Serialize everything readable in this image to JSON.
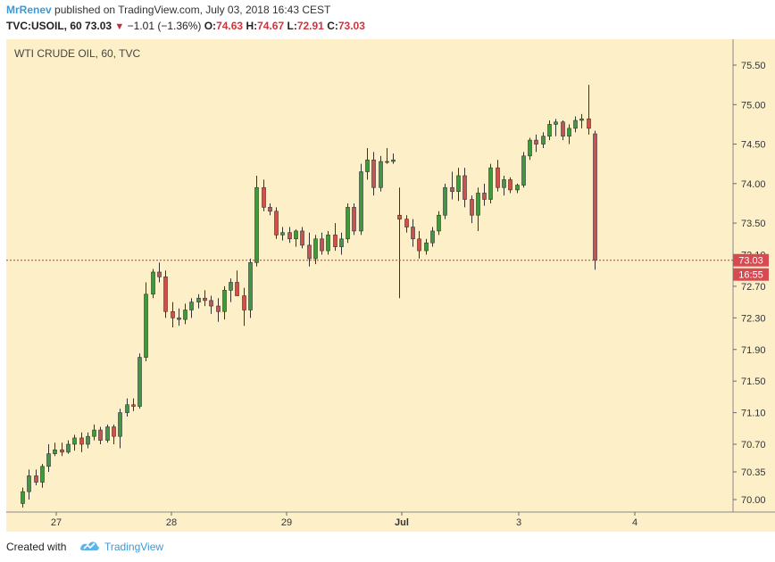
{
  "header": {
    "author": "MrRenev",
    "published_text": "published on TradingView.com, July 03, 2018 16:43 CEST",
    "symbol": "TVC:USOIL, 60",
    "last": "73.03",
    "change": "−1.01 (−1.36%)",
    "open_label": "O:",
    "open": "74.63",
    "high_label": "H:",
    "high": "74.67",
    "low_label": "L:",
    "low": "72.91",
    "close_label": "C:",
    "close": "73.03"
  },
  "footer": {
    "created_with": "Created with",
    "brand": "TradingView"
  },
  "colors": {
    "background": "#fdf0c8",
    "up": "#3f9a3f",
    "down": "#d0504d",
    "wick": "#333333",
    "price_line": "#d0343c",
    "label_bg": "#d84a52"
  },
  "chart_data": {
    "type": "candlestick",
    "title": "WTI CRUDE OIL, 60, TVC",
    "y_ticks": [
      "70.00",
      "70.35",
      "70.70",
      "71.10",
      "71.50",
      "71.90",
      "72.30",
      "72.70",
      "73.10",
      "73.50",
      "74.00",
      "74.50",
      "75.00",
      "75.50"
    ],
    "x_ticks": [
      "27",
      "28",
      "29",
      "Jul",
      "3",
      "4"
    ],
    "current_price_label": "73.03",
    "current_time_label": "16:55",
    "candles": [
      [
        69.95,
        70.15,
        69.9,
        70.1
      ],
      [
        70.1,
        70.38,
        70.0,
        70.3
      ],
      [
        70.3,
        70.38,
        70.18,
        70.22
      ],
      [
        70.22,
        70.45,
        70.15,
        70.42
      ],
      [
        70.42,
        70.7,
        70.35,
        70.58
      ],
      [
        70.58,
        70.72,
        70.55,
        70.63
      ],
      [
        70.63,
        70.72,
        70.55,
        70.6
      ],
      [
        70.6,
        70.75,
        70.58,
        70.7
      ],
      [
        70.7,
        70.82,
        70.62,
        70.78
      ],
      [
        70.78,
        70.85,
        70.6,
        70.7
      ],
      [
        70.7,
        70.85,
        70.65,
        70.8
      ],
      [
        70.8,
        70.95,
        70.75,
        70.88
      ],
      [
        70.88,
        70.92,
        70.7,
        70.75
      ],
      [
        70.75,
        70.95,
        70.72,
        70.92
      ],
      [
        70.92,
        70.95,
        70.7,
        70.8
      ],
      [
        70.8,
        71.15,
        70.65,
        71.1
      ],
      [
        71.1,
        71.28,
        71.05,
        71.2
      ],
      [
        71.2,
        71.28,
        71.12,
        71.18
      ],
      [
        71.18,
        71.85,
        71.15,
        71.8
      ],
      [
        71.8,
        72.75,
        71.75,
        72.6
      ],
      [
        72.6,
        72.92,
        72.55,
        72.88
      ],
      [
        72.88,
        73.0,
        72.75,
        72.82
      ],
      [
        72.82,
        72.9,
        72.3,
        72.38
      ],
      [
        72.38,
        72.5,
        72.18,
        72.3
      ],
      [
        72.3,
        72.42,
        72.2,
        72.28
      ],
      [
        72.28,
        72.48,
        72.22,
        72.4
      ],
      [
        72.4,
        72.55,
        72.3,
        72.5
      ],
      [
        72.5,
        72.6,
        72.42,
        72.55
      ],
      [
        72.55,
        72.65,
        72.45,
        72.52
      ],
      [
        72.52,
        72.58,
        72.35,
        72.45
      ],
      [
        72.45,
        72.55,
        72.25,
        72.38
      ],
      [
        72.38,
        72.7,
        72.28,
        72.65
      ],
      [
        72.65,
        72.8,
        72.5,
        72.75
      ],
      [
        72.75,
        72.9,
        72.6,
        72.58
      ],
      [
        72.58,
        72.68,
        72.2,
        72.4
      ],
      [
        72.4,
        73.05,
        72.3,
        73.0
      ],
      [
        73.0,
        74.1,
        72.95,
        73.95
      ],
      [
        73.95,
        74.05,
        73.65,
        73.7
      ],
      [
        73.7,
        73.75,
        73.6,
        73.65
      ],
      [
        73.65,
        73.7,
        73.3,
        73.35
      ],
      [
        73.35,
        73.45,
        73.28,
        73.38
      ],
      [
        73.38,
        73.45,
        73.25,
        73.3
      ],
      [
        73.3,
        73.42,
        73.2,
        73.4
      ],
      [
        73.4,
        73.45,
        73.18,
        73.22
      ],
      [
        73.22,
        73.38,
        72.95,
        73.05
      ],
      [
        73.05,
        73.35,
        72.98,
        73.3
      ],
      [
        73.3,
        73.38,
        73.1,
        73.15
      ],
      [
        73.15,
        73.4,
        73.1,
        73.35
      ],
      [
        73.35,
        73.5,
        73.15,
        73.2
      ],
      [
        73.2,
        73.38,
        73.1,
        73.3
      ],
      [
        73.3,
        73.75,
        73.25,
        73.7
      ],
      [
        73.7,
        73.75,
        73.35,
        73.4
      ],
      [
        73.4,
        74.25,
        73.35,
        74.15
      ],
      [
        74.15,
        74.45,
        74.05,
        74.3
      ],
      [
        74.3,
        74.4,
        73.85,
        73.95
      ],
      [
        73.95,
        74.35,
        73.9,
        74.28
      ],
      [
        74.28,
        74.45,
        74.25,
        74.28
      ],
      [
        74.28,
        74.38,
        74.25,
        74.3
      ],
      [
        73.6,
        73.95,
        72.55,
        73.55
      ],
      [
        73.55,
        73.6,
        73.38,
        73.45
      ],
      [
        73.45,
        73.55,
        73.2,
        73.3
      ],
      [
        73.3,
        73.4,
        73.05,
        73.15
      ],
      [
        73.15,
        73.3,
        73.1,
        73.25
      ],
      [
        73.25,
        73.45,
        73.2,
        73.4
      ],
      [
        73.4,
        73.65,
        73.35,
        73.6
      ],
      [
        73.6,
        74.0,
        73.55,
        73.95
      ],
      [
        73.95,
        74.15,
        73.8,
        73.9
      ],
      [
        73.9,
        74.2,
        73.78,
        74.1
      ],
      [
        74.1,
        74.2,
        73.7,
        73.8
      ],
      [
        73.8,
        73.85,
        73.5,
        73.6
      ],
      [
        73.6,
        73.95,
        73.4,
        73.88
      ],
      [
        73.88,
        74.0,
        73.72,
        73.8
      ],
      [
        73.8,
        74.25,
        73.75,
        74.2
      ],
      [
        74.2,
        74.3,
        73.9,
        73.95
      ],
      [
        73.95,
        74.1,
        73.85,
        74.05
      ],
      [
        74.05,
        74.08,
        73.88,
        73.92
      ],
      [
        73.92,
        74.0,
        73.88,
        73.98
      ],
      [
        73.98,
        74.4,
        73.95,
        74.35
      ],
      [
        74.35,
        74.58,
        74.3,
        74.55
      ],
      [
        74.55,
        74.62,
        74.4,
        74.5
      ],
      [
        74.5,
        74.65,
        74.45,
        74.6
      ],
      [
        74.6,
        74.8,
        74.55,
        74.75
      ],
      [
        74.75,
        74.82,
        74.6,
        74.78
      ],
      [
        74.78,
        74.8,
        74.55,
        74.6
      ],
      [
        74.6,
        74.75,
        74.5,
        74.7
      ],
      [
        74.7,
        74.85,
        74.65,
        74.8
      ],
      [
        74.8,
        74.88,
        74.7,
        74.82
      ],
      [
        74.82,
        75.25,
        74.62,
        74.7
      ],
      [
        74.63,
        74.67,
        72.91,
        73.03
      ]
    ]
  }
}
